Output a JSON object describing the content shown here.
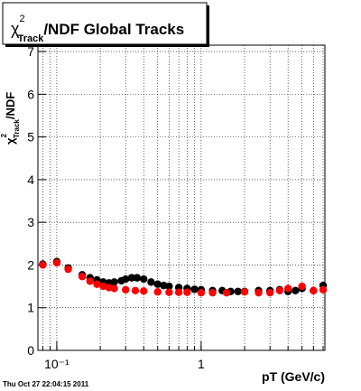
{
  "chart_data": {
    "type": "scatter",
    "title_symbol": "χ",
    "title_sup": "2",
    "title_sub": "Track",
    "title_rest": "/NDF  Global Tracks",
    "ylabel_symbol": "χ",
    "ylabel_sup": "2",
    "ylabel_sub": "Track",
    "ylabel_rest": "/NDF",
    "xlabel": "pT (GeV/c)",
    "footer": "Thu Oct 27 22:04:15 2011",
    "log_x": true,
    "grid": true,
    "xlim": [
      0.074,
      7.2
    ],
    "ylim": [
      0,
      7.15
    ],
    "xticks": [
      {
        "value": 0.1,
        "label": "10⁻¹"
      },
      1
    ],
    "xgrid": [
      0.08,
      0.09,
      0.1,
      0.2,
      0.3,
      0.4,
      0.5,
      0.6,
      0.7,
      0.8,
      0.9,
      1,
      2,
      3,
      4,
      5,
      6,
      7
    ],
    "yticks": [
      0,
      1,
      2,
      3,
      4,
      5,
      6,
      7
    ],
    "series": [
      {
        "name": "black",
        "color": "#000000",
        "x": [
          0.08,
          0.1,
          0.12,
          0.15,
          0.17,
          0.19,
          0.21,
          0.23,
          0.25,
          0.28,
          0.3,
          0.33,
          0.36,
          0.4,
          0.45,
          0.5,
          0.55,
          0.6,
          0.7,
          0.8,
          0.9,
          1,
          1.2,
          1.4,
          1.6,
          1.8,
          2,
          2.5,
          3,
          3.5,
          4,
          4.5,
          5,
          6,
          7
        ],
        "values": [
          2.02,
          2.08,
          1.93,
          1.77,
          1.7,
          1.65,
          1.6,
          1.58,
          1.6,
          1.63,
          1.67,
          1.7,
          1.7,
          1.67,
          1.6,
          1.55,
          1.52,
          1.5,
          1.47,
          1.45,
          1.43,
          1.42,
          1.4,
          1.4,
          1.38,
          1.38,
          1.38,
          1.4,
          1.4,
          1.42,
          1.38,
          1.4,
          1.45,
          1.4,
          1.52
        ]
      },
      {
        "name": "red",
        "color": "#ff0000",
        "x": [
          0.08,
          0.1,
          0.12,
          0.15,
          0.17,
          0.19,
          0.21,
          0.23,
          0.25,
          0.3,
          0.35,
          0.4,
          0.5,
          0.6,
          0.7,
          0.8,
          1,
          1.2,
          1.5,
          2,
          2.5,
          3,
          3.5,
          4,
          5,
          6,
          7
        ],
        "values": [
          2.0,
          2.05,
          1.9,
          1.73,
          1.62,
          1.55,
          1.5,
          1.47,
          1.45,
          1.42,
          1.4,
          1.39,
          1.37,
          1.36,
          1.36,
          1.36,
          1.35,
          1.35,
          1.35,
          1.37,
          1.35,
          1.35,
          1.4,
          1.45,
          1.5,
          1.4,
          1.42
        ]
      }
    ]
  }
}
